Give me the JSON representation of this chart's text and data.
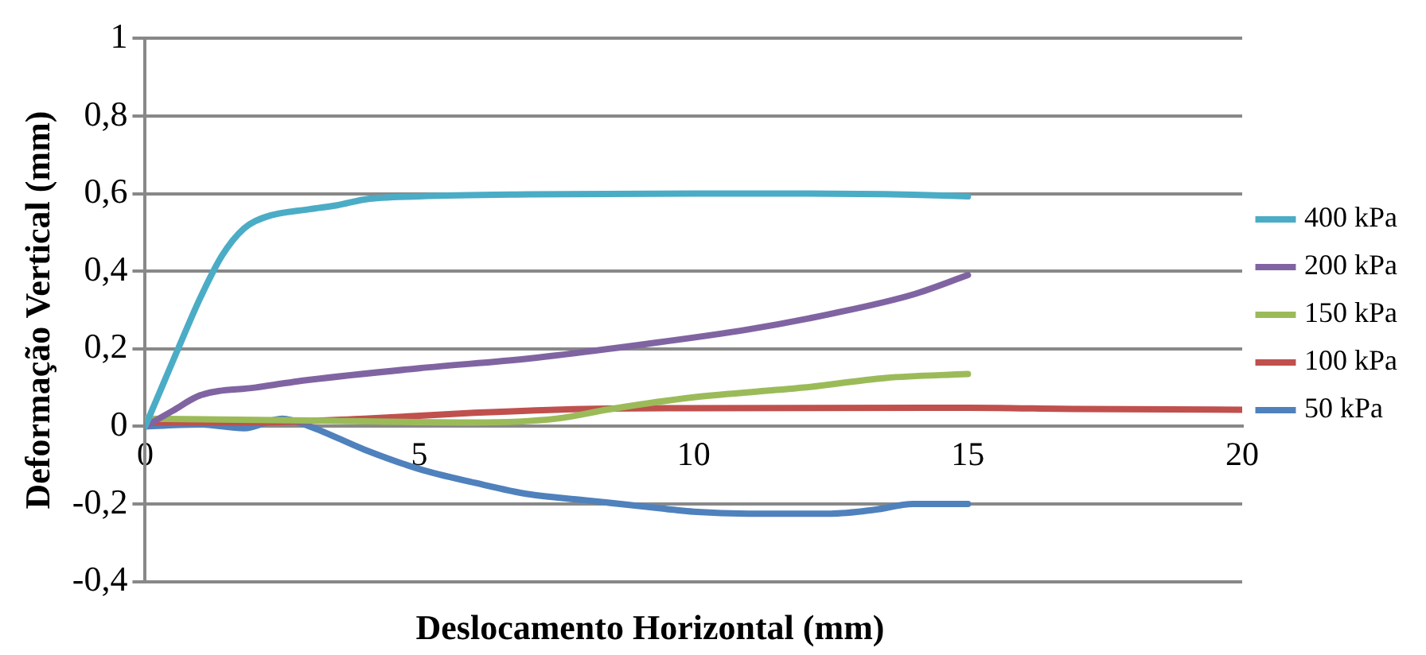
{
  "chart_data": {
    "type": "line",
    "xlabel": "Deslocamento Horizontal (mm)",
    "ylabel": "Deformação Vertical (mm)",
    "xlim": [
      0,
      20
    ],
    "xticks": [
      0,
      5,
      10,
      15,
      20
    ],
    "ylim": [
      -0.4,
      1
    ],
    "yticks": [
      {
        "value": -0.4,
        "label": "-0,4"
      },
      {
        "value": -0.2,
        "label": "-0,2"
      },
      0,
      {
        "value": 0.2,
        "label": "0,2"
      },
      {
        "value": 0.4,
        "label": "0,4"
      },
      {
        "value": 0.6,
        "label": "0,6"
      },
      {
        "value": 0.8,
        "label": "0,8"
      },
      1
    ],
    "grid": "y",
    "legend": "right",
    "marker": "none",
    "line_style": "solid",
    "series": [
      {
        "name": "400 kPa",
        "color": "#4bacc6",
        "x": [
          0,
          0.3,
          0.6,
          1,
          1.4,
          1.8,
          2.2,
          3,
          3.5,
          4,
          5,
          7,
          10,
          12,
          14,
          15
        ],
        "values": [
          0,
          0.1,
          0.2,
          0.33,
          0.44,
          0.51,
          0.54,
          0.56,
          0.57,
          0.585,
          0.593,
          0.598,
          0.6,
          0.6,
          0.597,
          0.593
        ]
      },
      {
        "name": "200 kPa",
        "color": "#8064a2",
        "x": [
          0,
          0.5,
          1,
          2,
          3,
          5,
          7,
          9,
          11,
          12.5,
          14,
          15
        ],
        "values": [
          0,
          0.04,
          0.08,
          0.1,
          0.12,
          0.15,
          0.175,
          0.21,
          0.25,
          0.29,
          0.34,
          0.39
        ]
      },
      {
        "name": "150 kPa",
        "color": "#9bbb59",
        "x": [
          0,
          3,
          6,
          7.5,
          8.5,
          10,
          12,
          13.5,
          15
        ],
        "values": [
          0.02,
          0.015,
          0.01,
          0.02,
          0.045,
          0.075,
          0.1,
          0.125,
          0.135
        ]
      },
      {
        "name": "100 kPa",
        "color": "#c0504d",
        "x": [
          0,
          2,
          4,
          6,
          8,
          10,
          15,
          17,
          20
        ],
        "values": [
          0.01,
          0.01,
          0.02,
          0.035,
          0.045,
          0.047,
          0.048,
          0.045,
          0.043
        ]
      },
      {
        "name": "50 kPa",
        "color": "#4f81bd",
        "x": [
          0,
          1,
          1.8,
          2.5,
          3,
          4,
          5,
          6,
          7,
          8,
          9,
          10,
          11,
          12.5,
          13.3,
          14,
          15
        ],
        "values": [
          0,
          0.005,
          -0.005,
          0.02,
          0,
          -0.06,
          -0.11,
          -0.145,
          -0.175,
          -0.19,
          -0.205,
          -0.22,
          -0.225,
          -0.225,
          -0.215,
          -0.2,
          -0.2
        ]
      }
    ]
  }
}
